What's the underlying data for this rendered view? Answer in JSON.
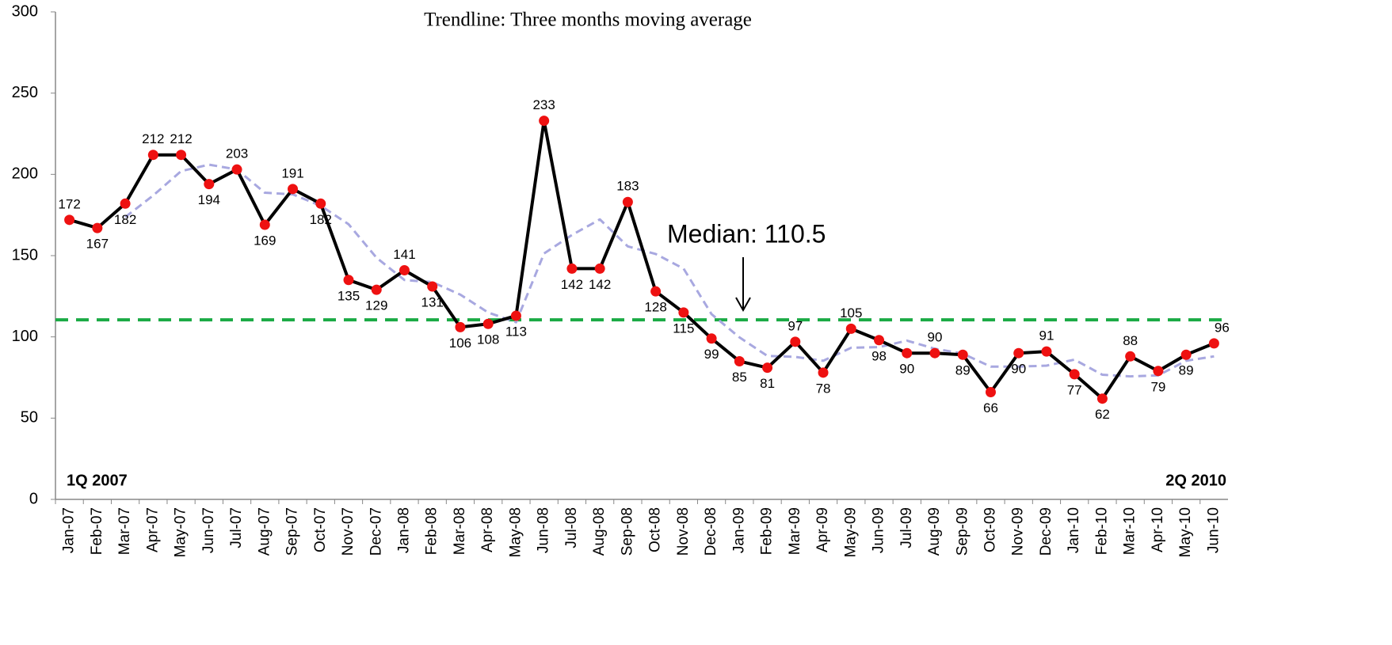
{
  "chart_data": {
    "type": "line",
    "title": "Trendline: Three months moving average",
    "categories": [
      "Jan-07",
      "Feb-07",
      "Mar-07",
      "Apr-07",
      "May-07",
      "Jun-07",
      "Jul-07",
      "Aug-07",
      "Sep-07",
      "Oct-07",
      "Nov-07",
      "Dec-07",
      "Jan-08",
      "Feb-08",
      "Mar-08",
      "Apr-08",
      "May-08",
      "Jun-08",
      "Jul-08",
      "Aug-08",
      "Sep-08",
      "Oct-08",
      "Nov-08",
      "Dec-08",
      "Jan-09",
      "Feb-09",
      "Mar-09",
      "Apr-09",
      "May-09",
      "Jun-09",
      "Jul-09",
      "Aug-09",
      "Sep-09",
      "Oct-09",
      "Nov-09",
      "Dec-09",
      "Jan-10",
      "Feb-10",
      "Mar-10",
      "Apr-10",
      "May-10",
      "Jun-10"
    ],
    "series": [
      {
        "color": "#000000",
        "marker_color": "#ee1111",
        "values": [
          172,
          167,
          182,
          212,
          212,
          194,
          203,
          169,
          191,
          182,
          135,
          129,
          141,
          131,
          106,
          108,
          113,
          233,
          142,
          142,
          183,
          128,
          115,
          99,
          85,
          81,
          97,
          78,
          105,
          98,
          90,
          90,
          89,
          66,
          90,
          91,
          77,
          62,
          88,
          79,
          89,
          96
        ]
      },
      {
        "color": "#a8a8e0",
        "dashed": true,
        "values": [
          null,
          null,
          173.7,
          187,
          202,
          206,
          203,
          188.7,
          187.7,
          180.7,
          169.3,
          148.7,
          135,
          133.7,
          126,
          115,
          109,
          151.3,
          162.7,
          172.3,
          155.7,
          151,
          142,
          114,
          99.7,
          88.3,
          87.7,
          85.3,
          93.3,
          93.7,
          97.7,
          92.7,
          89.7,
          81.7,
          81.7,
          82.3,
          86,
          76.7,
          75.7,
          76.3,
          85.3,
          88
        ]
      }
    ],
    "median": {
      "value": 110.5,
      "label": "Median: 110.5",
      "color": "#1aaa44"
    },
    "annotations": [
      "1Q 2007",
      "2Q 2010"
    ],
    "ylim": [
      0,
      300
    ],
    "yticks": [
      0,
      50,
      100,
      150,
      200,
      250,
      300
    ]
  }
}
